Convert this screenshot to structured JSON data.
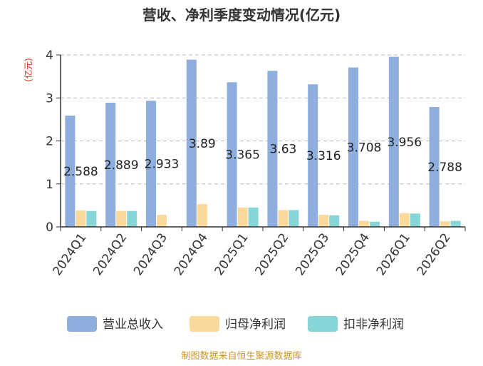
{
  "chart_data": {
    "type": "bar",
    "title": "营收、净利季度变动情况(亿元)",
    "ylabel": "(亿元)",
    "xlabel": "",
    "ylim": [
      0,
      4
    ],
    "y_ticks": [
      0,
      1,
      2,
      3,
      4
    ],
    "grid": true,
    "legend_position": "bottom",
    "categories": [
      "2024Q1",
      "2024Q2",
      "2024Q3",
      "2024Q4",
      "2025Q1",
      "2025Q2",
      "2025Q3",
      "2025Q4",
      "2026Q1",
      "2026Q2"
    ],
    "series": [
      {
        "name": "营业总收入",
        "color": "#8eaedd",
        "values": [
          2.588,
          2.889,
          2.933,
          3.89,
          3.365,
          3.63,
          3.316,
          3.708,
          3.956,
          2.788
        ],
        "labels": [
          "2.588",
          "2.889",
          "2.933",
          "3.89",
          "3.365",
          "3.63",
          "3.316",
          "3.708",
          "3.956",
          "2.788"
        ]
      },
      {
        "name": "归母净利润",
        "color": "#fbd99b",
        "values": [
          0.38,
          0.37,
          0.28,
          0.53,
          0.45,
          0.39,
          0.28,
          0.14,
          0.32,
          0.13
        ]
      },
      {
        "name": "扣非净利润",
        "color": "#86d5d7",
        "values": [
          0.37,
          0.37,
          null,
          null,
          0.45,
          0.39,
          0.27,
          0.12,
          0.31,
          0.14
        ]
      }
    ]
  },
  "footer": {
    "source": "制图数据来自恒生聚源数据库"
  }
}
